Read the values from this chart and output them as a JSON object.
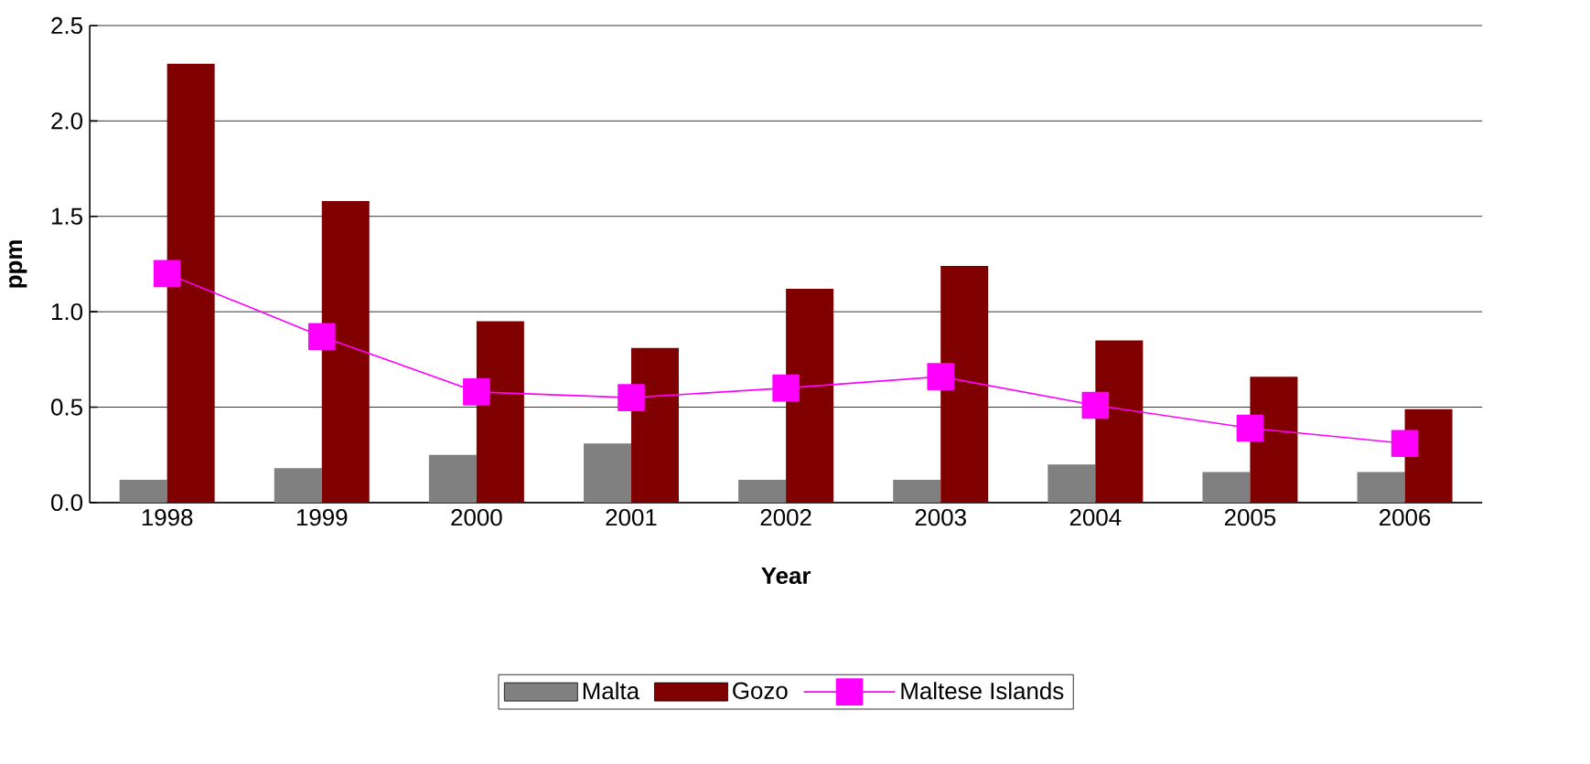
{
  "chart_data": {
    "type": "bar",
    "xlabel": "Year",
    "ylabel": "ppm",
    "categories": [
      "1998",
      "1999",
      "2000",
      "2001",
      "2002",
      "2003",
      "2004",
      "2005",
      "2006"
    ],
    "series": [
      {
        "name": "Malta",
        "color": "#808080",
        "values": [
          0.12,
          0.18,
          0.25,
          0.31,
          0.12,
          0.12,
          0.2,
          0.16,
          0.16
        ]
      },
      {
        "name": "Gozo",
        "color": "#800000",
        "values": [
          2.3,
          1.58,
          0.95,
          0.81,
          1.12,
          1.24,
          0.85,
          0.66,
          0.49
        ]
      },
      {
        "name": "Maltese Islands",
        "color": "#ff00ff",
        "type": "line",
        "marker": "square",
        "values": [
          1.2,
          0.87,
          0.58,
          0.55,
          0.6,
          0.66,
          0.51,
          0.39,
          0.31
        ]
      }
    ],
    "ylim": [
      0,
      2.5
    ],
    "yticks": [
      {
        "value": 0,
        "label": "0.0"
      },
      {
        "value": 0.5,
        "label": "0.5"
      },
      {
        "value": 1,
        "label": "1.0"
      },
      {
        "value": 1.5,
        "label": "1.5"
      },
      {
        "value": 2,
        "label": "2.0"
      },
      {
        "value": 2.5,
        "label": "2.5"
      }
    ],
    "grid": "y",
    "legend": "bottom"
  }
}
